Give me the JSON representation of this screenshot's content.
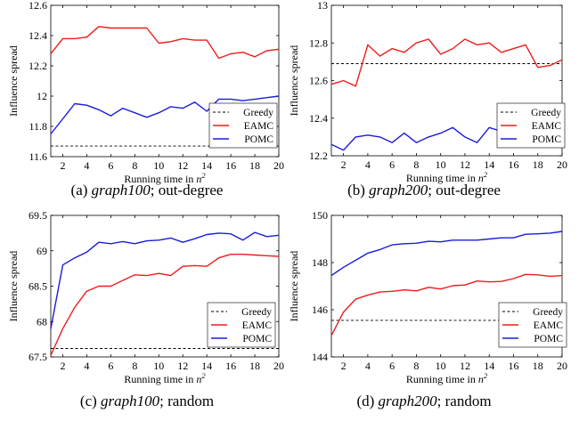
{
  "shared_ylabel": "Influence spread",
  "chart_data": [
    {
      "type": "line",
      "caption": [
        "(a) ",
        "graph100",
        "; out-degree"
      ],
      "xlabel": "Running time in n^2",
      "ylabel": "Influence spread",
      "x": [
        1,
        2,
        3,
        4,
        5,
        6,
        7,
        8,
        9,
        10,
        11,
        12,
        13,
        14,
        15,
        16,
        17,
        18,
        19,
        20
      ],
      "xlim": [
        1,
        20
      ],
      "xticks": [
        2,
        4,
        6,
        8,
        10,
        12,
        14,
        16,
        18,
        20
      ],
      "ylim": [
        11.6,
        12.6
      ],
      "yticks": [
        11.6,
        11.8,
        12,
        12.2,
        12.4,
        12.6
      ],
      "ytick_labels": [
        "11.6",
        "11.8",
        "12",
        "12.2",
        "12.4",
        "12.6"
      ],
      "legend_position": "bottom-right",
      "series": [
        {
          "name": "Greedy",
          "style": "dashed",
          "color": "#000000",
          "values": [
            11.67,
            11.67,
            11.67,
            11.67,
            11.67,
            11.67,
            11.67,
            11.67,
            11.67,
            11.67,
            11.67,
            11.67,
            11.67,
            11.67,
            11.67,
            11.67,
            11.67,
            11.67,
            11.67,
            11.67
          ]
        },
        {
          "name": "EAMC",
          "style": "solid",
          "color": "#ee1c1c",
          "values": [
            12.28,
            12.38,
            12.38,
            12.39,
            12.46,
            12.45,
            12.45,
            12.45,
            12.45,
            12.35,
            12.36,
            12.38,
            12.37,
            12.37,
            12.25,
            12.28,
            12.29,
            12.26,
            12.3,
            12.31
          ]
        },
        {
          "name": "POMC",
          "style": "solid",
          "color": "#1b1bdb",
          "values": [
            11.75,
            11.85,
            11.95,
            11.94,
            11.91,
            11.87,
            11.92,
            11.89,
            11.86,
            11.89,
            11.93,
            11.92,
            11.96,
            11.9,
            11.98,
            11.98,
            11.97,
            11.98,
            11.99,
            12.0
          ]
        }
      ]
    },
    {
      "type": "line",
      "caption": [
        "(b) ",
        "graph200",
        "; out-degree"
      ],
      "xlabel": "Running time in n^2",
      "ylabel": "Influence spread",
      "x": [
        1,
        2,
        3,
        4,
        5,
        6,
        7,
        8,
        9,
        10,
        11,
        12,
        13,
        14,
        15,
        16,
        17,
        18,
        19,
        20
      ],
      "xlim": [
        1,
        20
      ],
      "xticks": [
        2,
        4,
        6,
        8,
        10,
        12,
        14,
        16,
        18,
        20
      ],
      "ylim": [
        12.2,
        13.0
      ],
      "yticks": [
        12.2,
        12.4,
        12.6,
        12.8,
        13.0
      ],
      "ytick_labels": [
        "12.2",
        "12.4",
        "12.6",
        "12.8",
        "13"
      ],
      "legend_position": "center-right",
      "series": [
        {
          "name": "Greedy",
          "style": "dashed",
          "color": "#000000",
          "values": [
            12.69,
            12.69,
            12.69,
            12.69,
            12.69,
            12.69,
            12.69,
            12.69,
            12.69,
            12.69,
            12.69,
            12.69,
            12.69,
            12.69,
            12.69,
            12.69,
            12.69,
            12.69,
            12.69,
            12.69
          ]
        },
        {
          "name": "EAMC",
          "style": "solid",
          "color": "#ee1c1c",
          "values": [
            12.58,
            12.6,
            12.57,
            12.79,
            12.73,
            12.77,
            12.75,
            12.8,
            12.82,
            12.74,
            12.77,
            12.82,
            12.79,
            12.8,
            12.75,
            12.77,
            12.79,
            12.67,
            12.68,
            12.71
          ]
        },
        {
          "name": "POMC",
          "style": "solid",
          "color": "#1b1bdb",
          "values": [
            12.26,
            12.23,
            12.3,
            12.31,
            12.3,
            12.27,
            12.32,
            12.27,
            12.3,
            12.32,
            12.35,
            12.3,
            12.27,
            12.35,
            12.33,
            12.32,
            12.29,
            12.28,
            12.25,
            12.29
          ]
        }
      ]
    },
    {
      "type": "line",
      "caption": [
        "(c) ",
        "graph100",
        "; random"
      ],
      "xlabel": "Running time in n^2",
      "ylabel": "Influence spread",
      "x": [
        1,
        2,
        3,
        4,
        5,
        6,
        7,
        8,
        9,
        10,
        11,
        12,
        13,
        14,
        15,
        16,
        17,
        18,
        19,
        20
      ],
      "xlim": [
        1,
        20
      ],
      "xticks": [
        2,
        4,
        6,
        8,
        10,
        12,
        14,
        16,
        18,
        20
      ],
      "ylim": [
        67.5,
        69.5
      ],
      "yticks": [
        67.5,
        68,
        68.5,
        69,
        69.5
      ],
      "ytick_labels": [
        "67.5",
        "68",
        "68.5",
        "69",
        "69.5"
      ],
      "legend_position": "bottom-right",
      "series": [
        {
          "name": "Greedy",
          "style": "dashed",
          "color": "#000000",
          "values": [
            67.62,
            67.62,
            67.62,
            67.62,
            67.62,
            67.62,
            67.62,
            67.62,
            67.62,
            67.62,
            67.62,
            67.62,
            67.62,
            67.62,
            67.62,
            67.62,
            67.62,
            67.62,
            67.62,
            67.62
          ]
        },
        {
          "name": "EAMC",
          "style": "solid",
          "color": "#ee1c1c",
          "values": [
            67.52,
            67.9,
            68.2,
            68.43,
            68.5,
            68.5,
            68.58,
            68.66,
            68.65,
            68.68,
            68.65,
            68.78,
            68.79,
            68.78,
            68.9,
            68.95,
            68.95,
            68.94,
            68.93,
            68.92
          ]
        },
        {
          "name": "POMC",
          "style": "solid",
          "color": "#1b1bdb",
          "values": [
            67.9,
            68.8,
            68.9,
            68.98,
            69.12,
            69.1,
            69.13,
            69.1,
            69.14,
            69.15,
            69.18,
            69.12,
            69.17,
            69.23,
            69.25,
            69.24,
            69.15,
            69.26,
            69.2,
            69.22
          ]
        }
      ]
    },
    {
      "type": "line",
      "caption": [
        "(d) ",
        "graph200",
        "; random"
      ],
      "xlabel": "Running time in n^2",
      "ylabel": "Influence spread",
      "x": [
        1,
        2,
        3,
        4,
        5,
        6,
        7,
        8,
        9,
        10,
        11,
        12,
        13,
        14,
        15,
        16,
        17,
        18,
        19,
        20
      ],
      "xlim": [
        1,
        20
      ],
      "xticks": [
        2,
        4,
        6,
        8,
        10,
        12,
        14,
        16,
        18,
        20
      ],
      "ylim": [
        144,
        150
      ],
      "yticks": [
        144,
        146,
        148,
        150
      ],
      "ytick_labels": [
        "144",
        "146",
        "148",
        "150"
      ],
      "legend_position": "bottom-right",
      "series": [
        {
          "name": "Greedy",
          "style": "dashed",
          "color": "#000000",
          "values": [
            145.55,
            145.55,
            145.55,
            145.55,
            145.55,
            145.55,
            145.55,
            145.55,
            145.55,
            145.55,
            145.55,
            145.55,
            145.55,
            145.55,
            145.55,
            145.55,
            145.55,
            145.55,
            145.55,
            145.55
          ]
        },
        {
          "name": "EAMC",
          "style": "solid",
          "color": "#ee1c1c",
          "values": [
            144.9,
            145.9,
            146.45,
            146.62,
            146.75,
            146.78,
            146.84,
            146.8,
            146.95,
            146.88,
            147.02,
            147.05,
            147.22,
            147.18,
            147.2,
            147.32,
            147.5,
            147.48,
            147.42,
            147.45
          ]
        },
        {
          "name": "POMC",
          "style": "solid",
          "color": "#1b1bdb",
          "values": [
            147.45,
            147.8,
            148.1,
            148.4,
            148.55,
            148.75,
            148.8,
            148.82,
            148.9,
            148.88,
            148.95,
            148.95,
            148.95,
            149.0,
            149.05,
            149.05,
            149.2,
            149.22,
            149.25,
            149.32
          ]
        }
      ]
    }
  ]
}
